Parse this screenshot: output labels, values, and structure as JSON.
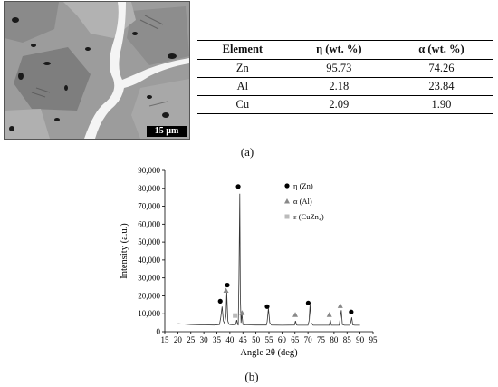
{
  "figure_a": {
    "scale_bar_label": "15 µm",
    "panel_label": "(a)"
  },
  "table": {
    "headers": [
      "Element",
      "η (wt. %)",
      "α (wt. %)"
    ],
    "rows": [
      [
        "Zn",
        "95.73",
        "74.26"
      ],
      [
        "Al",
        "2.18",
        "23.84"
      ],
      [
        "Cu",
        "2.09",
        "1.90"
      ]
    ]
  },
  "figure_b": {
    "panel_label": "(b)"
  },
  "chart_data": {
    "type": "line",
    "xlabel": "Angle 2θ (deg)",
    "ylabel": "Intensity (a.u.)",
    "xlim": [
      15,
      95
    ],
    "ylim": [
      0,
      90000
    ],
    "x_ticks": [
      "15",
      "20",
      "25",
      "30",
      "35",
      "40",
      "45",
      "50",
      "55",
      "60",
      "65",
      "70",
      "75",
      "80",
      "85",
      "90",
      "95"
    ],
    "y_ticks": [
      "0",
      "10,000",
      "20,000",
      "30,000",
      "40,000",
      "50,000",
      "60,000",
      "70,000",
      "80,000",
      "90,000"
    ],
    "legend_placement": "top-right",
    "legend": [
      {
        "label": "η (Zn)",
        "marker": "circle",
        "color": "#000000"
      },
      {
        "label": "α (Al)",
        "marker": "triangle",
        "color": "#888888"
      },
      {
        "label": "ε (CuZn₄)",
        "marker": "square",
        "color": "#bbbbbb"
      }
    ],
    "series": [
      {
        "x": [
          20,
          25,
          30,
          34,
          36,
          36.5,
          37,
          37.5,
          38,
          38.5,
          38.8,
          39.2,
          39.6,
          40,
          41,
          42.2,
          42.6,
          43,
          43.2,
          43.5,
          43.8,
          44,
          44.3,
          44.6,
          45,
          46,
          50,
          54,
          54.3,
          54.8,
          55.3,
          56,
          60,
          64.8,
          65.2,
          65.6,
          66,
          70,
          70.4,
          70.8,
          71.2,
          72,
          77,
          78.2,
          78.6,
          79,
          80,
          82,
          82.4,
          82.8,
          83.2,
          84,
          86,
          86.4,
          86.8,
          87.2,
          88,
          90
        ],
        "y": [
          4500,
          4000,
          3800,
          3700,
          4000,
          8000,
          14000,
          6000,
          4500,
          9000,
          22000,
          6000,
          4200,
          4000,
          3900,
          4000,
          6500,
          4000,
          3800,
          30000,
          77000,
          20000,
          5000,
          10000,
          4000,
          3800,
          3700,
          3700,
          5500,
          13000,
          5000,
          3700,
          3600,
          3700,
          6000,
          3700,
          3600,
          3600,
          6000,
          15000,
          5000,
          3600,
          3600,
          3600,
          6500,
          3600,
          3600,
          3600,
          8000,
          12000,
          4000,
          3600,
          3600,
          5000,
          8000,
          3800,
          3600,
          3600
        ]
      }
    ],
    "markers": [
      {
        "phase": "η (Zn)",
        "x": 36.3,
        "y": 17000
      },
      {
        "phase": "η (Zn)",
        "x": 39.0,
        "y": 26000
      },
      {
        "phase": "η (Zn)",
        "x": 43.2,
        "y": 81000
      },
      {
        "phase": "η (Zn)",
        "x": 54.3,
        "y": 14000
      },
      {
        "phase": "η (Zn)",
        "x": 70.1,
        "y": 16000
      },
      {
        "phase": "η (Zn)",
        "x": 86.6,
        "y": 11000
      },
      {
        "phase": "α (Al)",
        "x": 38.5,
        "y": 23000
      },
      {
        "phase": "α (Al)",
        "x": 44.7,
        "y": 10500
      },
      {
        "phase": "α (Al)",
        "x": 65.1,
        "y": 9500
      },
      {
        "phase": "α (Al)",
        "x": 78.2,
        "y": 9500
      },
      {
        "phase": "α (Al)",
        "x": 82.4,
        "y": 14500
      },
      {
        "phase": "ε (CuZn₄)",
        "x": 42.0,
        "y": 9000
      }
    ]
  }
}
